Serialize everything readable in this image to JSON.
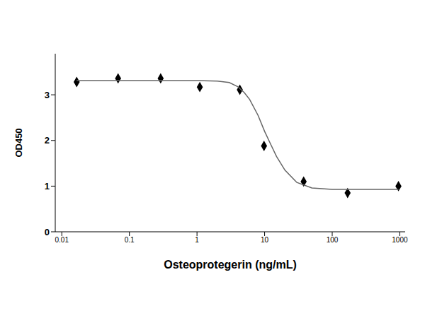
{
  "chart_data": {
    "type": "scatter",
    "x_label": "Osteoprotegerin (ng/mL)",
    "y_label": "OD450",
    "log": "x",
    "xlim": [
      0.008,
      1200
    ],
    "xticks": [
      0.01,
      0.1,
      1,
      10,
      100,
      1000
    ],
    "ylim": [
      0,
      3.9
    ],
    "yticks": [
      0,
      1,
      2,
      3
    ],
    "grid": false,
    "series": [
      {
        "type": "scatter",
        "marker": "diamond",
        "color": "#000000",
        "x": [
          0.0166,
          0.068,
          0.29,
          1.1,
          4.3,
          9.8,
          37.8,
          169,
          955
        ],
        "values": [
          3.28,
          3.36,
          3.36,
          3.17,
          3.11,
          1.88,
          1.1,
          0.85,
          1.0
        ]
      },
      {
        "type": "line",
        "line_style": "solid",
        "color": "#666666",
        "x": [
          0.0166,
          0.1,
          1,
          2,
          3,
          4,
          5,
          6,
          8,
          10,
          12,
          15,
          20,
          30,
          50,
          100,
          955
        ],
        "values": [
          3.31,
          3.31,
          3.31,
          3.3,
          3.27,
          3.18,
          3.05,
          2.9,
          2.55,
          2.2,
          1.95,
          1.65,
          1.35,
          1.08,
          0.96,
          0.93,
          0.93
        ]
      }
    ]
  }
}
